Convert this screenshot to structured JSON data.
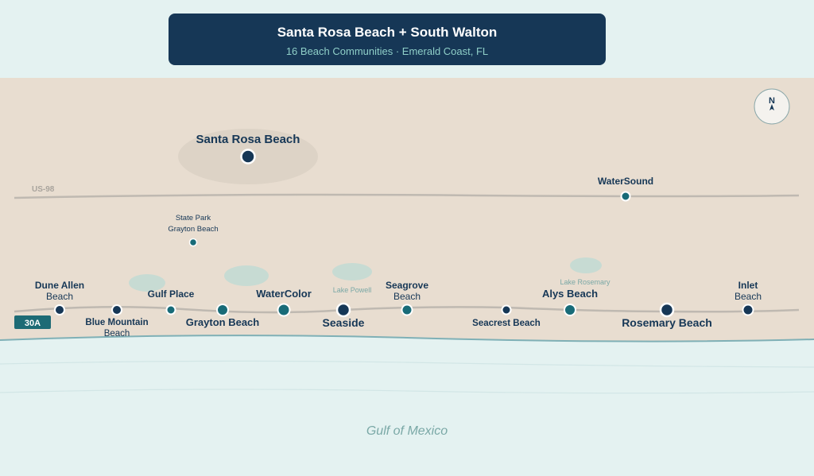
{
  "header": {
    "title": "Santa Rosa Beach + South Walton",
    "subtitle": "16 Beach Communities · Emerald Coast, FL"
  },
  "compass": {
    "label": "N"
  },
  "roads": {
    "us98": "US-98",
    "route30a": "30A"
  },
  "water": {
    "gulf": "Gulf of Mexico",
    "lake_powell": "Lake Powell",
    "lake_rosemary": "Lake Rosemary"
  },
  "colors": {
    "navy": "#163756",
    "teal": "#186b78",
    "land": "#e8ddd0",
    "water": "#e4f2f1"
  },
  "places": {
    "santa_rosa_beach": "Santa Rosa Beach",
    "watersound": "WaterSound",
    "state_park_line1": "State Park",
    "state_park_line2": "Grayton Beach",
    "dune_allen_line1": "Dune Allen",
    "dune_allen_line2": "Beach",
    "blue_mountain_line1": "Blue Mountain",
    "blue_mountain_line2": "Beach",
    "gulf_place": "Gulf Place",
    "grayton_beach": "Grayton Beach",
    "watercolor": "WaterColor",
    "seaside": "Seaside",
    "seagrove_line1": "Seagrove",
    "seagrove_line2": "Beach",
    "seacrest_beach": "Seacrest Beach",
    "alys_beach": "Alys Beach",
    "rosemary_beach": "Rosemary Beach",
    "inlet_line1": "Inlet",
    "inlet_line2": "Beach"
  }
}
